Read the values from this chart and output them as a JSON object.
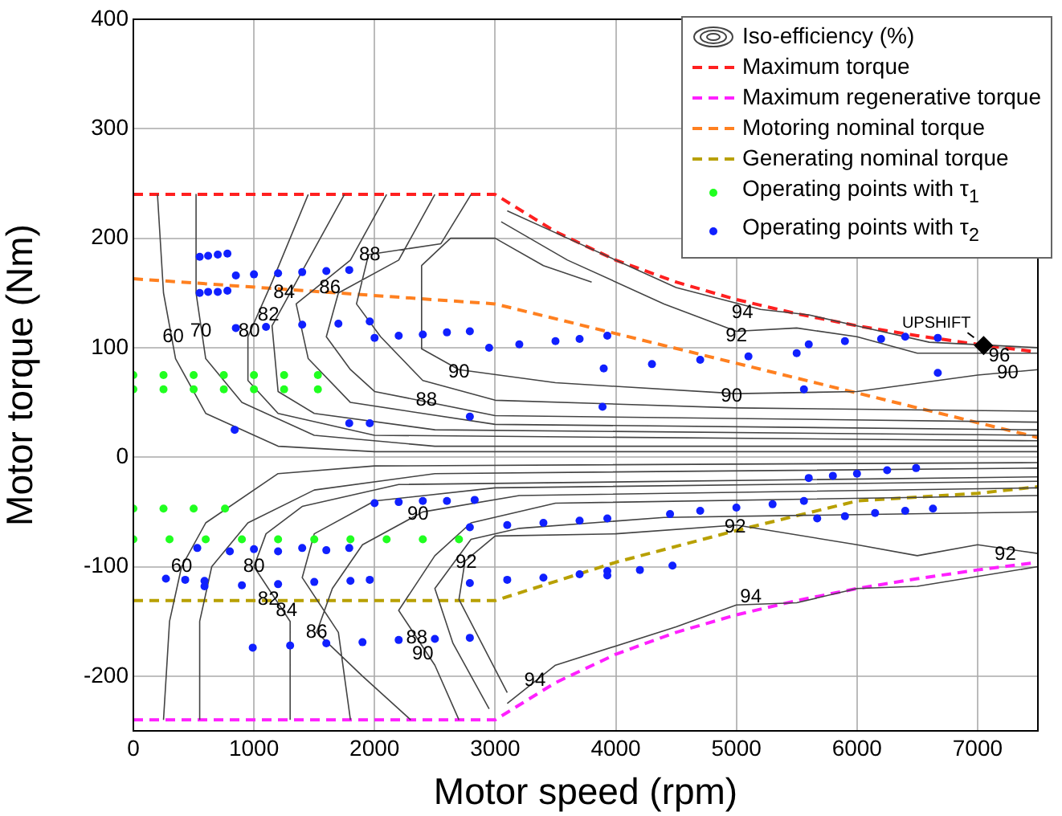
{
  "chart_data": {
    "type": "line",
    "xlabel": "Motor speed (rpm)",
    "ylabel": "Motor torque (Nm)",
    "xlim": [
      0,
      7500
    ],
    "xticks": [
      0,
      1000,
      2000,
      3000,
      4000,
      5000,
      6000,
      7000
    ],
    "ylim": [
      -250,
      400
    ],
    "yticks": [
      -200,
      -100,
      0,
      100,
      200,
      300,
      400
    ],
    "grid": true,
    "legend": "top right",
    "series": [
      {
        "name": "Iso-efficiency (%)",
        "type": "line",
        "color": "#444444",
        "line_style": "solid",
        "marker": "none",
        "x": [
          200,
          250,
          350,
          600,
          1200,
          2000,
          7500,
          null,
          520,
          520,
          600,
          900,
          1500,
          2500,
          7500,
          null,
          1450,
          1150,
          950,
          950,
          1200,
          2000,
          7500,
          null,
          1750,
          1350,
          1150,
          1200,
          1500,
          2500,
          7500,
          null,
          2100,
          1800,
          1350,
          1450,
          1800,
          3000,
          7500,
          null,
          2500,
          2200,
          1700,
          1600,
          1800,
          2000,
          3000,
          7500,
          null,
          2800,
          2550,
          1950,
          1850,
          2050,
          2400,
          3000,
          5000,
          7500,
          null,
          2390,
          2390,
          2700,
          3500,
          5000,
          6000,
          7000,
          7500,
          null,
          2390,
          2630,
          3000,
          3400,
          3800,
          null,
          3050,
          3600,
          4400,
          5000,
          5500,
          6000,
          6500,
          7000,
          7500,
          null,
          3100,
          3600,
          4500,
          5200,
          5600,
          6000,
          6600,
          7500,
          null,
          250,
          300,
          400,
          600,
          1200,
          2000,
          7500,
          null,
          550,
          550,
          650,
          950,
          1500,
          2500,
          7500,
          null,
          1300,
          1300,
          1000,
          1100,
          1400,
          2200,
          7500,
          null,
          1800,
          1700,
          1400,
          1500,
          2000,
          3000,
          7500,
          null,
          2300,
          1900,
          1520,
          1650,
          1900,
          2400,
          3200,
          7500,
          null,
          2700,
          2500,
          2200,
          2500,
          2800,
          3500,
          7500,
          null,
          2950,
          2650,
          2500,
          2800,
          3200,
          4400,
          7500,
          null,
          3100,
          2700,
          2750,
          3000,
          4000,
          5000,
          6000,
          6500,
          7000,
          7500,
          null,
          3100,
          3500,
          4500,
          5000,
          5500,
          6000,
          6500,
          7500
        ],
        "values": [
          240,
          150,
          90,
          40,
          10,
          5,
          5,
          null,
          240,
          150,
          90,
          50,
          20,
          10,
          10,
          null,
          240,
          160,
          110,
          70,
          40,
          20,
          15,
          null,
          240,
          160,
          120,
          60,
          40,
          25,
          20,
          null,
          240,
          180,
          140,
          90,
          50,
          30,
          25,
          null,
          240,
          180,
          150,
          110,
          80,
          60,
          38,
          32,
          null,
          240,
          195,
          185,
          140,
          110,
          70,
          52,
          45,
          42,
          null,
          175,
          99,
          80,
          68,
          58,
          60,
          75,
          80,
          null,
          175,
          200,
          200,
          175,
          160,
          null,
          215,
          180,
          140,
          115,
          118,
          110,
          95,
          95,
          95,
          null,
          225,
          200,
          155,
          135,
          130,
          120,
          105,
          100,
          null,
          -240,
          -150,
          -100,
          -60,
          -15,
          -8,
          -5,
          null,
          -240,
          -150,
          -100,
          -60,
          -30,
          -15,
          -10,
          null,
          -240,
          -150,
          -100,
          -70,
          -45,
          -25,
          -18,
          null,
          -240,
          -160,
          -110,
          -70,
          -40,
          -28,
          -22,
          null,
          -240,
          -200,
          -160,
          -120,
          -80,
          -50,
          -35,
          -28,
          null,
          -240,
          -190,
          -140,
          -90,
          -60,
          -42,
          -35,
          null,
          -230,
          -170,
          -120,
          -75,
          -65,
          -55,
          -50,
          null,
          -215,
          -130,
          -95,
          -72,
          -70,
          -62,
          -80,
          -90,
          -80,
          -88,
          null,
          -225,
          -190,
          -155,
          -135,
          -133,
          -120,
          -118,
          -100
        ]
      },
      {
        "name": "Maximum torque",
        "type": "line",
        "color": "#ff2020",
        "line_style": "dashed",
        "marker": "none",
        "x": [
          0,
          3000,
          3500,
          4000,
          4500,
          5000,
          5500,
          6000,
          6500,
          7000,
          7500
        ],
        "values": [
          240,
          240,
          206,
          180,
          160,
          144,
          131,
          120,
          111,
          103,
          96
        ]
      },
      {
        "name": "Maximum regenerative torque",
        "type": "line",
        "color": "#ff20ff",
        "line_style": "dashed",
        "marker": "none",
        "x": [
          0,
          3000,
          3500,
          4000,
          4500,
          5000,
          5500,
          6000,
          6500,
          7000,
          7500
        ],
        "values": [
          -240,
          -240,
          -206,
          -180,
          -160,
          -144,
          -131,
          -120,
          -111,
          -103,
          -96
        ]
      },
      {
        "name": "Motoring nominal torque",
        "type": "line",
        "color": "#ff8020",
        "line_style": "dashed",
        "marker": "none",
        "x": [
          0,
          3000,
          7500
        ],
        "values": [
          163,
          140,
          18
        ]
      },
      {
        "name": "Generating nominal torque",
        "type": "line",
        "color": "#b8a000",
        "line_style": "dashed",
        "marker": "none",
        "x": [
          0,
          3000,
          4000,
          5000,
          6000,
          7000,
          7500
        ],
        "values": [
          -131,
          -131,
          -96,
          -67,
          -40,
          -33,
          -27
        ]
      },
      {
        "name": "Operating points with τ$_{1}$",
        "type": "scatter",
        "color": "#20ff20",
        "marker": "circle",
        "x": [
          0,
          250,
          500,
          750,
          1000,
          1250,
          1530,
          0,
          250,
          500,
          750,
          1000,
          1250,
          1530,
          0,
          250,
          500,
          760,
          0,
          300,
          600,
          900,
          1200,
          1500,
          1800,
          2100,
          2400,
          2700
        ],
        "values": [
          75,
          75,
          75,
          75,
          75,
          75,
          75,
          62,
          62,
          62,
          62,
          62,
          62,
          62,
          -47,
          -47,
          -47,
          -47,
          -75,
          -75,
          -75,
          -75,
          -75,
          -75,
          -75,
          -75,
          -75,
          -75
        ]
      },
      {
        "name": "Operating points with τ$_{2}$",
        "type": "scatter",
        "color": "#1020ff",
        "marker": "circle",
        "x": [
          550,
          620,
          700,
          780,
          550,
          620,
          700,
          780,
          850,
          1000,
          1200,
          1400,
          1600,
          1790,
          850,
          1100,
          1400,
          1700,
          1960,
          2000,
          2200,
          2400,
          2600,
          2790,
          2950,
          3200,
          3500,
          3700,
          3930,
          3900,
          4300,
          4700,
          5100,
          5500,
          5600,
          5900,
          6200,
          6400,
          6670,
          840,
          1790,
          1960,
          2790,
          3890,
          5560,
          6670,
          2000,
          2200,
          2400,
          2600,
          2830,
          2790,
          3100,
          3400,
          3700,
          3930,
          4450,
          4700,
          5000,
          5300,
          5560,
          5670,
          5900,
          6150,
          6400,
          6630,
          5600,
          5800,
          6000,
          6250,
          6490,
          530,
          800,
          1000,
          1200,
          1400,
          1600,
          1790,
          270,
          430,
          590,
          590,
          900,
          1200,
          1500,
          1800,
          1960,
          2790,
          3100,
          3400,
          3700,
          3930,
          3930,
          4200,
          4470,
          990,
          1300,
          1600,
          1900,
          2200,
          2500,
          2790
        ],
        "values": [
          183,
          184,
          185,
          186,
          150,
          151,
          151,
          152,
          166,
          167,
          168,
          169,
          170,
          171,
          118,
          119,
          121,
          122,
          124,
          109,
          111,
          112,
          114,
          115,
          100,
          103,
          106,
          108,
          111,
          81,
          85,
          89,
          92,
          95,
          103,
          106,
          108,
          110,
          109,
          25,
          31,
          31,
          37,
          46,
          62,
          77,
          -42,
          -41,
          -40,
          -40,
          -39,
          -64,
          -62,
          -60,
          -58,
          -56,
          -52,
          -49,
          -46,
          -43,
          -40,
          -56,
          -54,
          -51,
          -49,
          -47,
          -19,
          -17,
          -15,
          -12,
          -10,
          -83,
          -86,
          -84,
          -86,
          -83,
          -85,
          -83,
          -111,
          -112,
          -113,
          -118,
          -117,
          -116,
          -114,
          -113,
          -112,
          -115,
          -112,
          -110,
          -107,
          -104,
          -108,
          -103,
          -99,
          -174,
          -172,
          -170,
          -169,
          -167,
          -166,
          -165
        ]
      },
      {
        "type": "scatter",
        "color": "#000000",
        "marker": "diamond",
        "x": [
          7050
        ],
        "values": [
          102
        ]
      }
    ],
    "annotations": [
      {
        "text": "UPSHIFT",
        "x": 7050,
        "y": 102
      },
      {
        "text": "60",
        "x": 330,
        "y": 110
      },
      {
        "text": "70",
        "x": 560,
        "y": 115
      },
      {
        "text": "80",
        "x": 960,
        "y": 115
      },
      {
        "text": "82",
        "x": 1120,
        "y": 130
      },
      {
        "text": "84",
        "x": 1250,
        "y": 150
      },
      {
        "text": "86",
        "x": 1630,
        "y": 155
      },
      {
        "text": "88",
        "x": 1960,
        "y": 185
      },
      {
        "text": "88",
        "x": 2430,
        "y": 52
      },
      {
        "text": "90",
        "x": 2700,
        "y": 78
      },
      {
        "text": "90",
        "x": 4960,
        "y": 56
      },
      {
        "text": "92",
        "x": 5000,
        "y": 111
      },
      {
        "text": "94",
        "x": 5050,
        "y": 132
      },
      {
        "text": "96",
        "x": 7180,
        "y": 92
      },
      {
        "text": "90",
        "x": 7250,
        "y": 77
      },
      {
        "text": "60",
        "x": 400,
        "y": -100
      },
      {
        "text": "80",
        "x": 1000,
        "y": -100
      },
      {
        "text": "82",
        "x": 1120,
        "y": -130
      },
      {
        "text": "84",
        "x": 1270,
        "y": -140
      },
      {
        "text": "86",
        "x": 1520,
        "y": -160
      },
      {
        "text": "88",
        "x": 2350,
        "y": -165
      },
      {
        "text": "90",
        "x": 2400,
        "y": -180
      },
      {
        "text": "90",
        "x": 2360,
        "y": -52
      },
      {
        "text": "92",
        "x": 2760,
        "y": -96
      },
      {
        "text": "92",
        "x": 4990,
        "y": -64
      },
      {
        "text": "92",
        "x": 7230,
        "y": -89
      },
      {
        "text": "94",
        "x": 5120,
        "y": -128
      },
      {
        "text": "94",
        "x": 3330,
        "y": -204
      }
    ]
  }
}
